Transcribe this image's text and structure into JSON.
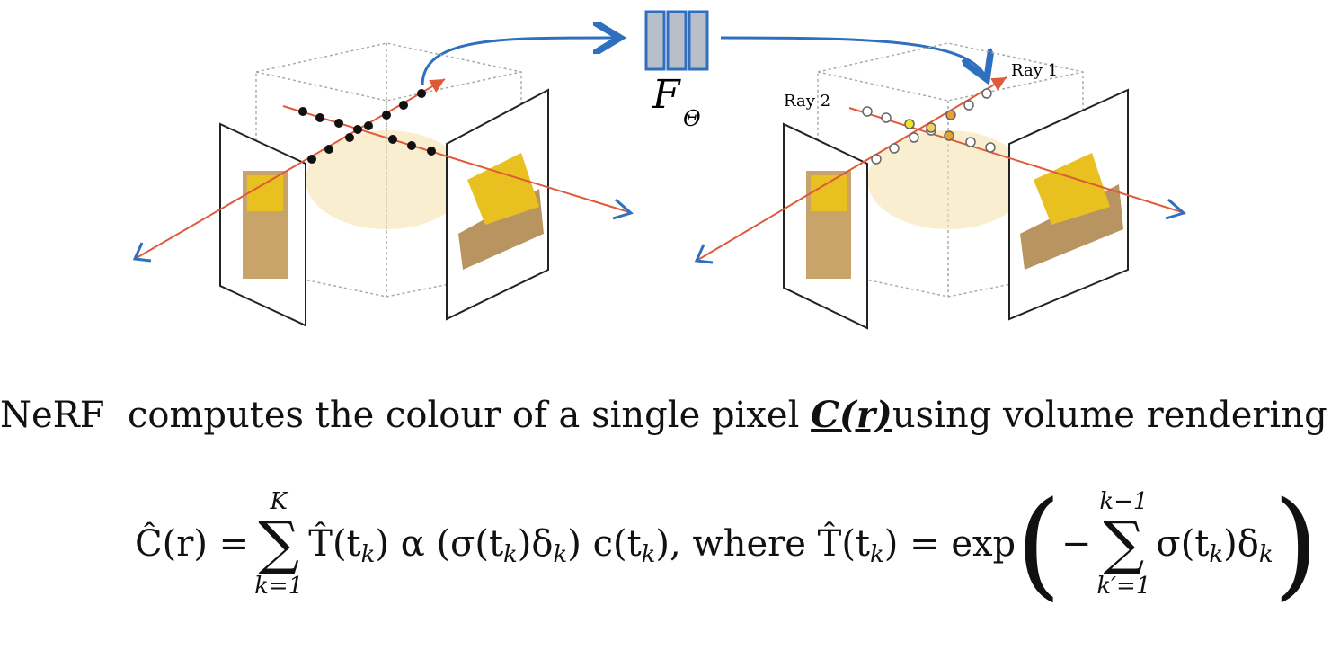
{
  "network": {
    "label": "F",
    "subscript": "Θ"
  },
  "rays": {
    "ray_1": "Ray 1",
    "ray_2": "Ray 2"
  },
  "caption": {
    "before": "NeRF  computes the colour of a single pixel",
    "emphasis": "C(r)",
    "after": "using volume rendering :"
  },
  "equation": [
    {
      "kind": "text",
      "text": "Ĉ(r) ="
    },
    {
      "kind": "sum",
      "upper": "K",
      "symbol": "∑",
      "lower": "k=1"
    },
    {
      "kind": "text",
      "text": "T̂(t"
    },
    {
      "kind": "sub",
      "text": "k"
    },
    {
      "kind": "text",
      "text": ") α (σ(t"
    },
    {
      "kind": "sub",
      "text": "k"
    },
    {
      "kind": "text",
      "text": ")δ"
    },
    {
      "kind": "sub",
      "text": "k"
    },
    {
      "kind": "text",
      "text": ") c(t"
    },
    {
      "kind": "sub",
      "text": "k"
    },
    {
      "kind": "text",
      "text": "), where T̂(t"
    },
    {
      "kind": "sub",
      "text": "k"
    },
    {
      "kind": "text",
      "text": ") = exp"
    },
    {
      "kind": "paren",
      "text": "("
    },
    {
      "kind": "text",
      "text": "−"
    },
    {
      "kind": "sum",
      "upper": "k−1",
      "symbol": "∑",
      "lower": "k′=1"
    },
    {
      "kind": "text",
      "text": "σ(t"
    },
    {
      "kind": "sub",
      "text": "k"
    },
    {
      "kind": "text",
      "text": ")δ"
    },
    {
      "kind": "sub",
      "text": "k"
    },
    {
      "kind": "paren",
      "text": ")"
    }
  ]
}
